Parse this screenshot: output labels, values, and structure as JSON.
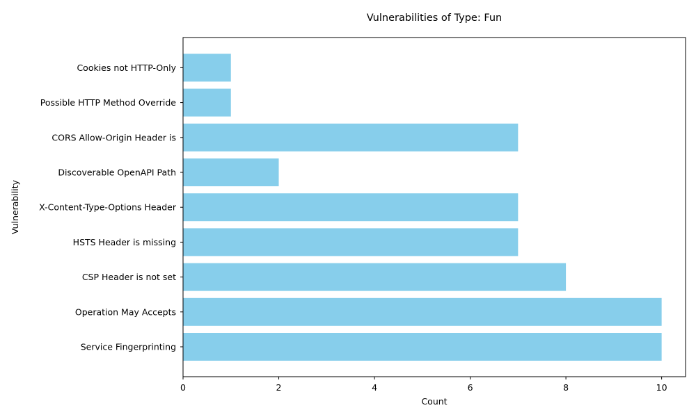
{
  "chart_data": {
    "type": "bar",
    "orientation": "horizontal",
    "title": "Vulnerabilities of Type: Fun",
    "xlabel": "Count",
    "ylabel": "Vulnerability",
    "categories": [
      "Service Fingerprinting",
      "Operation May Accepts",
      "CSP Header is not set",
      "HSTS Header is missing",
      "X-Content-Type-Options Header",
      "Discoverable OpenAPI Path",
      "CORS Allow-Origin Header is",
      "Possible HTTP Method Override",
      "Cookies not HTTP-Only"
    ],
    "values": [
      10,
      10,
      8,
      7,
      7,
      2,
      7,
      1,
      1
    ],
    "xlim": [
      0,
      10.5
    ],
    "xticks": [
      0,
      2,
      4,
      6,
      8,
      10
    ],
    "grid": false,
    "bar_color": "#87ceeb"
  }
}
